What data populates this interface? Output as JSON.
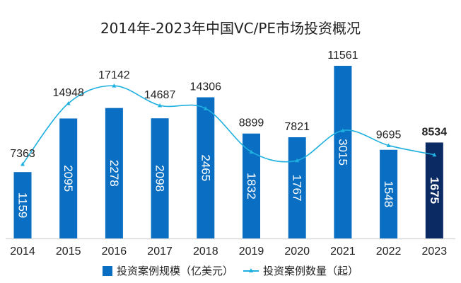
{
  "chart_data": {
    "type": "bar",
    "title": "2014年-2023年中国VC/PE市场投资概况",
    "categories": [
      "2014",
      "2015",
      "2016",
      "2017",
      "2018",
      "2019",
      "2020",
      "2021",
      "2022",
      "2023"
    ],
    "series": [
      {
        "name": "投资案例规模（亿美元）",
        "type": "bar",
        "axis": "left",
        "values": [
          1159,
          2095,
          2278,
          2098,
          2465,
          1832,
          1767,
          3015,
          1548,
          1675
        ]
      },
      {
        "name": "投资案例数量（起）",
        "type": "line",
        "axis": "right",
        "smooth": true,
        "values": [
          7363,
          14948,
          17142,
          14687,
          14306,
          8899,
          7821,
          11561,
          9695,
          8534
        ]
      }
    ],
    "ylim": [
      0,
      3670
    ],
    "y2lim": [
      -1900,
      24300
    ],
    "grid": false,
    "legend": "bottom",
    "highlight": "2023",
    "colors": {
      "bar": "#0a6fc2",
      "bar_highlight": "#0b2a63",
      "line": "#1fb0e0",
      "text": "#222222",
      "axis": "#d9d9d9"
    }
  }
}
